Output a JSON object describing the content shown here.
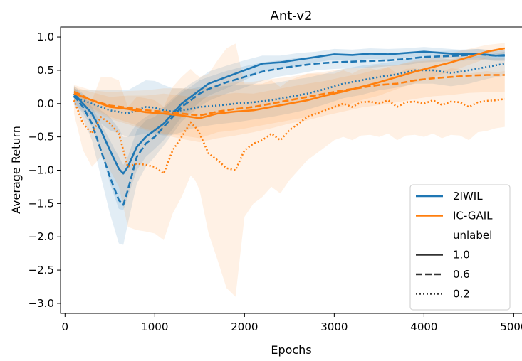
{
  "chart_data": {
    "type": "line",
    "title": "Ant-v2",
    "xlabel": "Epochs",
    "ylabel": "Average Return",
    "xlim": [
      -50,
      5100
    ],
    "ylim": [
      -3.15,
      1.15
    ],
    "xticks": [
      0,
      1000,
      2000,
      3000,
      4000,
      5000
    ],
    "xtick_labels": [
      "0",
      "1000",
      "2000",
      "3000",
      "4000",
      "5000"
    ],
    "yticks": [
      1.0,
      0.5,
      0.0,
      -0.5,
      -1.0,
      -1.5,
      -2.0,
      -2.5,
      -3.0
    ],
    "ytick_labels": [
      "1.0",
      "0.5",
      "0.0",
      "−0.5",
      "−1.0",
      "−1.5",
      "−2.0",
      "−2.5",
      "−3.0"
    ],
    "grid": false,
    "legend": {
      "placement": "lower-right",
      "methods": [
        {
          "label": "2IWIL",
          "color": "#1f77b4"
        },
        {
          "label": "IC-GAIL",
          "color": "#ff7f0e"
        }
      ],
      "group_title": "unlabel",
      "styles": [
        {
          "label": "1.0",
          "dash": "solid"
        },
        {
          "label": "0.6",
          "dash": "dashed"
        },
        {
          "label": "0.2",
          "dash": "dotted"
        }
      ]
    },
    "series": [
      {
        "method": "2IWIL",
        "unlabel": "1.0",
        "color": "#1f77b4",
        "dash": "solid",
        "x": [
          100,
          200,
          300,
          400,
          500,
          600,
          650,
          700,
          800,
          900,
          1000,
          1100,
          1200,
          1300,
          1400,
          1500,
          1600,
          1800,
          2000,
          2200,
          2400,
          2600,
          2800,
          3000,
          3200,
          3400,
          3600,
          3800,
          4000,
          4200,
          4400,
          4600,
          4800,
          4900
        ],
        "y": [
          0.15,
          0.0,
          -0.15,
          -0.4,
          -0.7,
          -0.98,
          -1.05,
          -0.95,
          -0.65,
          -0.5,
          -0.4,
          -0.3,
          -0.15,
          0.0,
          0.1,
          0.2,
          0.3,
          0.4,
          0.5,
          0.6,
          0.62,
          0.66,
          0.7,
          0.74,
          0.73,
          0.75,
          0.74,
          0.76,
          0.78,
          0.76,
          0.74,
          0.75,
          0.72,
          0.73
        ],
        "band": [
          0.12,
          0.15,
          0.2,
          0.3,
          0.5,
          0.6,
          0.55,
          0.45,
          0.35,
          0.3,
          0.28,
          0.25,
          0.23,
          0.2,
          0.2,
          0.18,
          0.18,
          0.17,
          0.15,
          0.12,
          0.1,
          0.1,
          0.08,
          0.08,
          0.08,
          0.08,
          0.08,
          0.07,
          0.07,
          0.07,
          0.07,
          0.07,
          0.07,
          0.07
        ]
      },
      {
        "method": "2IWIL",
        "unlabel": "0.6",
        "color": "#1f77b4",
        "dash": "dashed",
        "x": [
          100,
          200,
          300,
          400,
          500,
          600,
          650,
          700,
          800,
          900,
          1000,
          1100,
          1200,
          1300,
          1400,
          1500,
          1600,
          1800,
          2000,
          2200,
          2400,
          2600,
          2800,
          3000,
          3200,
          3400,
          3600,
          3800,
          4000,
          4200,
          4400,
          4600,
          4800,
          4900
        ],
        "y": [
          0.12,
          -0.05,
          -0.3,
          -0.7,
          -1.1,
          -1.45,
          -1.52,
          -1.3,
          -0.8,
          -0.6,
          -0.5,
          -0.35,
          -0.2,
          -0.05,
          0.05,
          0.15,
          0.22,
          0.32,
          0.4,
          0.48,
          0.53,
          0.57,
          0.6,
          0.62,
          0.63,
          0.64,
          0.65,
          0.67,
          0.7,
          0.71,
          0.72,
          0.74,
          0.72,
          0.72
        ],
        "band": [
          0.12,
          0.18,
          0.25,
          0.4,
          0.55,
          0.65,
          0.6,
          0.5,
          0.4,
          0.35,
          0.3,
          0.28,
          0.25,
          0.22,
          0.2,
          0.2,
          0.18,
          0.17,
          0.16,
          0.14,
          0.12,
          0.12,
          0.1,
          0.1,
          0.1,
          0.1,
          0.09,
          0.09,
          0.08,
          0.08,
          0.08,
          0.08,
          0.08,
          0.08
        ]
      },
      {
        "method": "2IWIL",
        "unlabel": "0.2",
        "color": "#1f77b4",
        "dash": "dotted",
        "x": [
          100,
          300,
          500,
          700,
          900,
          1000,
          1100,
          1200,
          1300,
          1400,
          1500,
          1700,
          1900,
          2100,
          2300,
          2500,
          2700,
          2900,
          3100,
          3300,
          3500,
          3700,
          3900,
          4100,
          4300,
          4500,
          4700,
          4900
        ],
        "y": [
          0.1,
          0.0,
          -0.1,
          -0.15,
          -0.05,
          -0.06,
          -0.1,
          -0.12,
          -0.1,
          -0.08,
          -0.05,
          -0.03,
          0.0,
          0.02,
          0.05,
          0.1,
          0.15,
          0.22,
          0.3,
          0.35,
          0.4,
          0.44,
          0.5,
          0.5,
          0.46,
          0.5,
          0.55,
          0.6
        ],
        "band": [
          0.12,
          0.2,
          0.3,
          0.35,
          0.4,
          0.4,
          0.38,
          0.35,
          0.33,
          0.3,
          0.3,
          0.28,
          0.28,
          0.26,
          0.25,
          0.25,
          0.24,
          0.23,
          0.22,
          0.22,
          0.2,
          0.2,
          0.2,
          0.2,
          0.2,
          0.2,
          0.18,
          0.18
        ]
      },
      {
        "method": "IC-GAIL",
        "unlabel": "1.0",
        "color": "#ff7f0e",
        "dash": "solid",
        "x": [
          100,
          300,
          500,
          700,
          900,
          1100,
          1300,
          1500,
          1700,
          1900,
          2100,
          2300,
          2500,
          2700,
          2900,
          3100,
          3300,
          3500,
          3700,
          3900,
          4100,
          4300,
          4500,
          4700,
          4900
        ],
        "y": [
          0.15,
          0.05,
          -0.05,
          -0.08,
          -0.13,
          -0.15,
          -0.18,
          -0.22,
          -0.15,
          -0.12,
          -0.1,
          -0.05,
          0.0,
          0.05,
          0.12,
          0.18,
          0.25,
          0.32,
          0.4,
          0.48,
          0.55,
          0.62,
          0.7,
          0.78,
          0.83
        ],
        "band": [
          0.1,
          0.12,
          0.15,
          0.2,
          0.25,
          0.3,
          0.3,
          0.3,
          0.28,
          0.28,
          0.25,
          0.25,
          0.25,
          0.25,
          0.22,
          0.22,
          0.2,
          0.2,
          0.18,
          0.17,
          0.15,
          0.14,
          0.12,
          0.1,
          0.08
        ]
      },
      {
        "method": "IC-GAIL",
        "unlabel": "0.6",
        "color": "#ff7f0e",
        "dash": "dashed",
        "x": [
          100,
          300,
          500,
          700,
          900,
          1100,
          1300,
          1500,
          1700,
          1900,
          2100,
          2300,
          2500,
          2700,
          2900,
          3100,
          3300,
          3500,
          3700,
          3900,
          4100,
          4300,
          4500,
          4700,
          4900
        ],
        "y": [
          0.18,
          0.05,
          -0.03,
          -0.06,
          -0.1,
          -0.12,
          -0.15,
          -0.18,
          -0.12,
          -0.08,
          -0.05,
          0.0,
          0.05,
          0.1,
          0.15,
          0.2,
          0.24,
          0.28,
          0.3,
          0.35,
          0.38,
          0.4,
          0.42,
          0.43,
          0.43
        ],
        "band": [
          0.1,
          0.15,
          0.2,
          0.25,
          0.3,
          0.35,
          0.38,
          0.4,
          0.4,
          0.4,
          0.38,
          0.37,
          0.35,
          0.35,
          0.33,
          0.32,
          0.3,
          0.3,
          0.28,
          0.28,
          0.27,
          0.27,
          0.26,
          0.26,
          0.25
        ]
      },
      {
        "method": "IC-GAIL",
        "unlabel": "0.2",
        "color": "#ff7f0e",
        "dash": "dotted",
        "x": [
          100,
          200,
          300,
          400,
          500,
          600,
          700,
          800,
          900,
          1000,
          1100,
          1200,
          1300,
          1400,
          1450,
          1500,
          1600,
          1700,
          1800,
          1900,
          2000,
          2100,
          2200,
          2300,
          2400,
          2500,
          2600,
          2700,
          2800,
          2900,
          3000,
          3100,
          3200,
          3300,
          3400,
          3500,
          3600,
          3700,
          3800,
          3900,
          4000,
          4100,
          4200,
          4300,
          4400,
          4500,
          4600,
          4700,
          4800,
          4900
        ],
        "y": [
          0.05,
          -0.3,
          -0.45,
          -0.2,
          -0.3,
          -0.45,
          -0.95,
          -0.9,
          -0.92,
          -0.95,
          -1.05,
          -0.7,
          -0.5,
          -0.28,
          -0.35,
          -0.45,
          -0.75,
          -0.85,
          -0.97,
          -1.0,
          -0.7,
          -0.6,
          -0.55,
          -0.45,
          -0.55,
          -0.4,
          -0.3,
          -0.2,
          -0.15,
          -0.1,
          -0.05,
          0.0,
          -0.05,
          0.02,
          0.03,
          0.0,
          0.05,
          -0.05,
          0.02,
          0.03,
          0.0,
          0.05,
          -0.02,
          0.03,
          0.02,
          -0.05,
          0.02,
          0.04,
          0.05,
          0.07
        ],
        "band": [
          0.2,
          0.4,
          0.5,
          0.6,
          0.7,
          0.8,
          0.9,
          1.0,
          1.0,
          1.0,
          1.0,
          0.95,
          0.9,
          0.8,
          0.8,
          0.85,
          1.2,
          1.5,
          1.8,
          1.9,
          1.0,
          0.9,
          0.85,
          0.8,
          0.8,
          0.75,
          0.7,
          0.65,
          0.6,
          0.55,
          0.5,
          0.5,
          0.5,
          0.5,
          0.5,
          0.5,
          0.5,
          0.5,
          0.5,
          0.5,
          0.5,
          0.5,
          0.5,
          0.5,
          0.5,
          0.5,
          0.45,
          0.45,
          0.42,
          0.42
        ]
      }
    ]
  }
}
